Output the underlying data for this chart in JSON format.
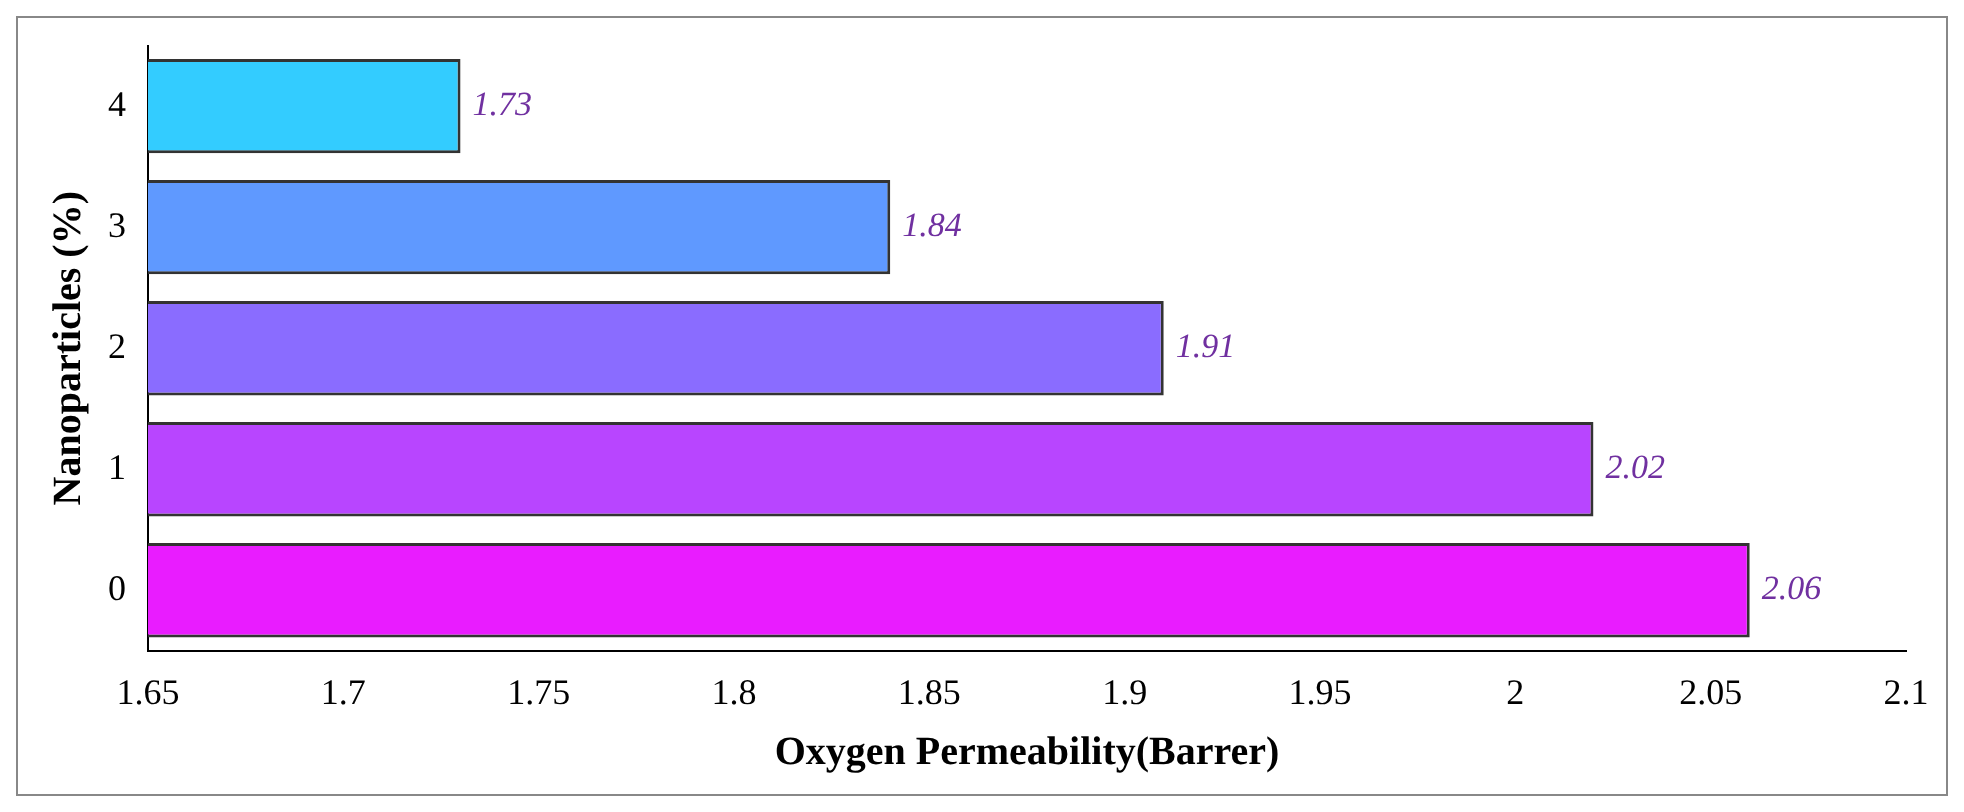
{
  "chart_data": {
    "type": "bar",
    "orientation": "horizontal",
    "xlabel": "Oxygen Permeability(Barrer)",
    "ylabel": "Nanoparticles (%)",
    "categories": [
      "4",
      "3",
      "2",
      "1",
      "0"
    ],
    "values": [
      1.73,
      1.84,
      1.91,
      2.02,
      2.06
    ],
    "colors": [
      "#33ccff",
      "#5f99ff",
      "#8a6cff",
      "#b845ff",
      "#e91cff"
    ],
    "data_labels": true,
    "xlim": [
      1.65,
      2.1
    ],
    "xticks": [
      1.65,
      1.7,
      1.75,
      1.8,
      1.85,
      1.9,
      1.95,
      2,
      2.05,
      2.1
    ],
    "grid": false,
    "legend": false
  }
}
